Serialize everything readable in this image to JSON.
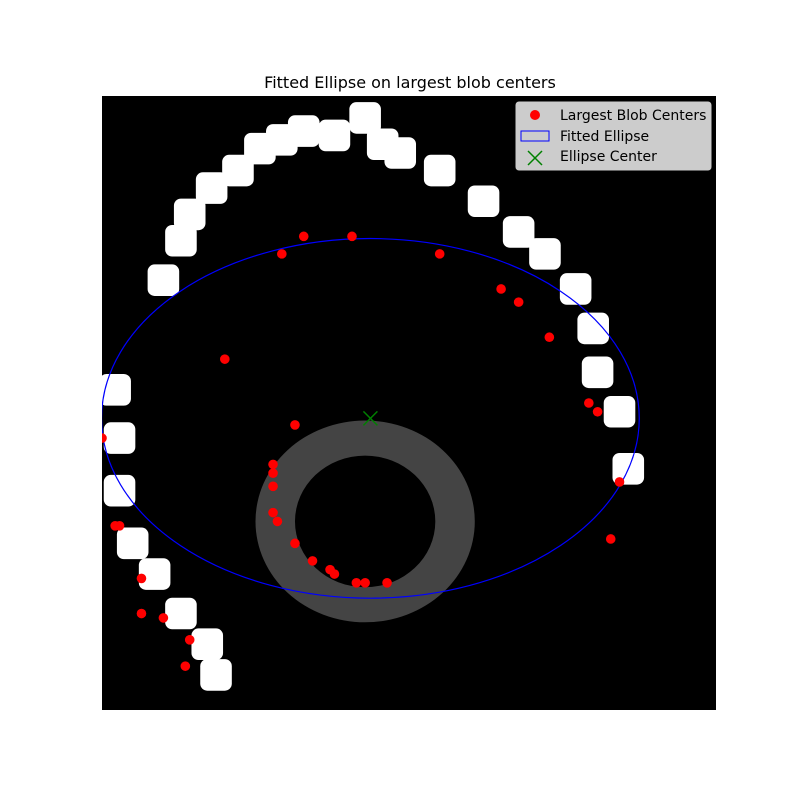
{
  "chart_data": {
    "type": "scatter",
    "title": "Fitted Ellipse on largest blob centers",
    "xlabel": "",
    "ylabel": "",
    "xlim": [
      0,
      140
    ],
    "ylim": [
      140,
      0
    ],
    "axes_visible": false,
    "background_image": {
      "description": "binary mask: white blobs arranged along an arc, grey ring blob",
      "white_blobs": [
        [
          14,
          42
        ],
        [
          18,
          33
        ],
        [
          20,
          27
        ],
        [
          25,
          21
        ],
        [
          31,
          17
        ],
        [
          36,
          12
        ],
        [
          41,
          10
        ],
        [
          46,
          8
        ],
        [
          53,
          9
        ],
        [
          60,
          5
        ],
        [
          64,
          11
        ],
        [
          68,
          13
        ],
        [
          77,
          17
        ],
        [
          87,
          24
        ],
        [
          95,
          31
        ],
        [
          101,
          36
        ],
        [
          108,
          44
        ],
        [
          112,
          53
        ],
        [
          113,
          63
        ],
        [
          118,
          72
        ],
        [
          120,
          85
        ],
        [
          3,
          67
        ],
        [
          4,
          78
        ],
        [
          4,
          90
        ],
        [
          7,
          102
        ],
        [
          12,
          109
        ],
        [
          18,
          118
        ],
        [
          24,
          125
        ],
        [
          26,
          132
        ]
      ],
      "gray_ring": {
        "cx": 60,
        "cy": 97,
        "outer_rx": 50,
        "outer_ry": 46,
        "inner_rx": 32,
        "inner_ry": 30
      }
    },
    "series": [
      {
        "name": "Largest Blob Centers",
        "type": "scatter",
        "color": "#ff0000",
        "x": [
          0,
          4,
          9,
          14,
          20,
          28,
          41,
          46,
          57,
          77,
          91,
          95,
          102,
          111,
          113,
          118,
          116,
          39,
          44,
          39,
          39,
          39,
          40,
          44,
          48,
          52,
          53,
          58,
          60,
          65,
          3,
          9,
          19
        ],
        "y": [
          78,
          98,
          110,
          119,
          124,
          60,
          36,
          32,
          32,
          36,
          44,
          47,
          55,
          70,
          72,
          88,
          101,
          86,
          75,
          84,
          89,
          95,
          97,
          102,
          106,
          108,
          109,
          111,
          111,
          111,
          98,
          118,
          130
        ]
      },
      {
        "name": "Fitted Ellipse",
        "type": "ellipse",
        "color": "#0000ff",
        "center": [
          61.2,
          73.5
        ],
        "semi_axes": [
          61.3,
          41
        ],
        "angle": 0
      },
      {
        "name": "Ellipse Center",
        "type": "marker",
        "marker": "x",
        "color": "#008000",
        "x": [
          61.2
        ],
        "y": [
          73.5
        ]
      }
    ],
    "legend": {
      "position": "top-right",
      "entries": [
        "Largest Blob Centers",
        "Fitted Ellipse",
        "Ellipse Center"
      ]
    }
  }
}
